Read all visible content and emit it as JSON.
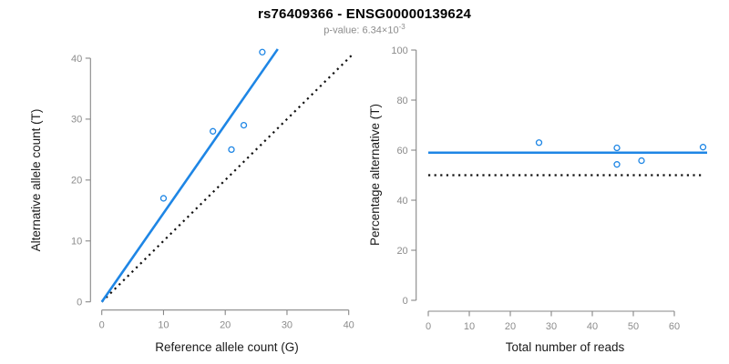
{
  "header": {
    "title": "rs76409366 - ENSG00000139624",
    "pvalue_base": "p-value: 6.34×10",
    "pvalue_exponent": "-3"
  },
  "colors": {
    "accent_blue": "#1e86e5",
    "identity_black": "#111111",
    "axis_gray": "#878787",
    "tick_gray": "#8c8c8c",
    "label_black": "#1a1a1a",
    "subtitle_gray": "#8c8c8c"
  },
  "chart_data": [
    {
      "type": "scatter",
      "title": "",
      "xlabel": "Reference allele count (G)",
      "ylabel": "Alternative allele count (T)",
      "xlim": [
        0,
        40
      ],
      "ylim": [
        0,
        40
      ],
      "xticks": [
        0,
        10,
        20,
        30,
        40
      ],
      "yticks": [
        0,
        10,
        20,
        30,
        40
      ],
      "grid": false,
      "legend": null,
      "points": [
        [
          10,
          17
        ],
        [
          18,
          28
        ],
        [
          21,
          25
        ],
        [
          23,
          29
        ],
        [
          26,
          41
        ]
      ],
      "lines": [
        {
          "name": "identity",
          "role": "y-equals-x-reference",
          "x1": 0,
          "y1": 0,
          "x2": 40.6,
          "y2": 40.6,
          "color": "identity_black",
          "dash": [
            2.2,
            4.4
          ],
          "width": 2.2
        },
        {
          "name": "fit",
          "role": "regression",
          "x1": 0,
          "y1": 0,
          "x2": 28.5,
          "y2": 41.5,
          "color": "accent_blue",
          "dash": null,
          "width": 2.6
        }
      ]
    },
    {
      "type": "scatter",
      "title": "",
      "xlabel": "Total number of reads",
      "ylabel": "Percentage alternative (T)",
      "xlim": [
        0,
        68
      ],
      "ylim": [
        0,
        100
      ],
      "xticks": [
        0,
        10,
        20,
        30,
        40,
        50,
        60
      ],
      "yticks": [
        0,
        20,
        40,
        60,
        80,
        100
      ],
      "grid": false,
      "legend": null,
      "points": [
        [
          27,
          63.0
        ],
        [
          46,
          60.9
        ],
        [
          46,
          54.3
        ],
        [
          52,
          55.8
        ],
        [
          67,
          61.2
        ]
      ],
      "lines": [
        {
          "name": "expected",
          "role": "fifty-percent-reference",
          "x1": 0,
          "y1": 50,
          "x2": 67,
          "y2": 50,
          "color": "identity_black",
          "dash": [
            2.2,
            4.4
          ],
          "width": 2.2
        },
        {
          "name": "fit",
          "role": "mean-percentage",
          "x1": 0,
          "y1": 59,
          "x2": 68,
          "y2": 59,
          "color": "accent_blue",
          "dash": null,
          "width": 2.6
        }
      ]
    }
  ]
}
